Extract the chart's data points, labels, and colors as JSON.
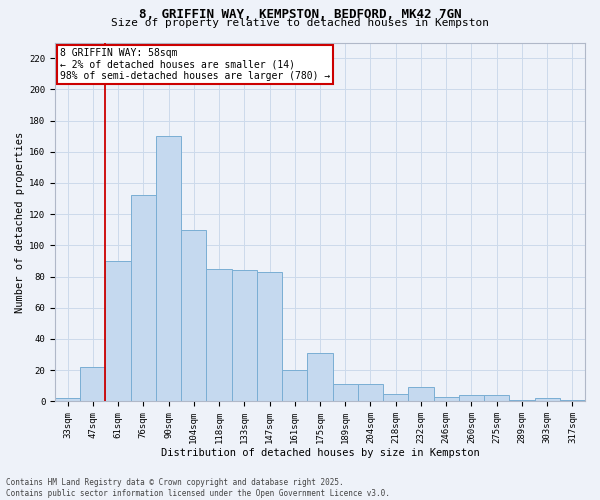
{
  "title_line1": "8, GRIFFIN WAY, KEMPSTON, BEDFORD, MK42 7GN",
  "title_line2": "Size of property relative to detached houses in Kempston",
  "xlabel": "Distribution of detached houses by size in Kempston",
  "ylabel": "Number of detached properties",
  "categories": [
    "33sqm",
    "47sqm",
    "61sqm",
    "76sqm",
    "90sqm",
    "104sqm",
    "118sqm",
    "133sqm",
    "147sqm",
    "161sqm",
    "175sqm",
    "189sqm",
    "204sqm",
    "218sqm",
    "232sqm",
    "246sqm",
    "260sqm",
    "275sqm",
    "289sqm",
    "303sqm",
    "317sqm"
  ],
  "values": [
    2,
    22,
    90,
    132,
    170,
    110,
    85,
    84,
    83,
    20,
    31,
    11,
    11,
    5,
    9,
    3,
    4,
    4,
    1,
    2,
    1
  ],
  "bar_color": "#c5d9ef",
  "bar_edge_color": "#7aaed4",
  "vline_color": "#cc0000",
  "vline_x": 1.5,
  "annotation_text": "8 GRIFFIN WAY: 58sqm\n← 2% of detached houses are smaller (14)\n98% of semi-detached houses are larger (780) →",
  "annotation_box_facecolor": "#ffffff",
  "annotation_box_edgecolor": "#cc0000",
  "ylim_max": 230,
  "yticks": [
    0,
    20,
    40,
    60,
    80,
    100,
    120,
    140,
    160,
    180,
    200,
    220
  ],
  "footer_text": "Contains HM Land Registry data © Crown copyright and database right 2025.\nContains public sector information licensed under the Open Government Licence v3.0.",
  "grid_color": "#ccdaeb",
  "bg_color": "#eef2f9",
  "title_fontsize": 9,
  "subtitle_fontsize": 8,
  "tick_fontsize": 6.5,
  "ylabel_fontsize": 7.5,
  "xlabel_fontsize": 7.5,
  "footer_fontsize": 5.5
}
